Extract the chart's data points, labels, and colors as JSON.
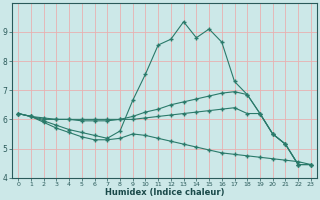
{
  "xlabel": "Humidex (Indice chaleur)",
  "background_color": "#cce8e8",
  "grid_color": "#dda0a0",
  "line_color": "#2a7a6a",
  "xlim": [
    -0.5,
    23.5
  ],
  "ylim": [
    4,
    10
  ],
  "yticks": [
    4,
    5,
    6,
    7,
    8,
    9
  ],
  "xticks": [
    0,
    1,
    2,
    3,
    4,
    5,
    6,
    7,
    8,
    9,
    10,
    11,
    12,
    13,
    14,
    15,
    16,
    17,
    18,
    19,
    20,
    21,
    22,
    23
  ],
  "line_peak_x": [
    0,
    1,
    2,
    3,
    4,
    5,
    6,
    7,
    8,
    9,
    10,
    11,
    12,
    13,
    14,
    15,
    16,
    17,
    18,
    19,
    20,
    21,
    22,
    23
  ],
  "line_peak_y": [
    6.2,
    6.1,
    5.95,
    5.8,
    5.65,
    5.55,
    5.45,
    5.35,
    5.6,
    6.65,
    7.55,
    8.55,
    8.75,
    9.35,
    8.8,
    9.1,
    8.65,
    7.3,
    6.85,
    6.2,
    5.5,
    5.15,
    4.45,
    4.45
  ],
  "line_upper_x": [
    0,
    1,
    2,
    3,
    4,
    5,
    6,
    7,
    8,
    9,
    10,
    11,
    12,
    13,
    14,
    15,
    16,
    17,
    18,
    19,
    20,
    21,
    22,
    23
  ],
  "line_upper_y": [
    6.2,
    6.1,
    6.0,
    6.0,
    6.0,
    5.95,
    5.95,
    5.95,
    6.0,
    6.1,
    6.25,
    6.35,
    6.5,
    6.6,
    6.7,
    6.8,
    6.9,
    6.95,
    6.85,
    6.2,
    5.5,
    5.15,
    4.45,
    4.45
  ],
  "line_flat_x": [
    0,
    1,
    2,
    3,
    4,
    5,
    6,
    7,
    8,
    9,
    10,
    11,
    12,
    13,
    14,
    15,
    16,
    17,
    18,
    19,
    20,
    21,
    22,
    23
  ],
  "line_flat_y": [
    6.2,
    6.1,
    6.05,
    6.0,
    6.0,
    6.0,
    6.0,
    6.0,
    6.0,
    6.0,
    6.05,
    6.1,
    6.15,
    6.2,
    6.25,
    6.3,
    6.35,
    6.4,
    6.2,
    6.2,
    5.5,
    5.15,
    4.45,
    4.45
  ],
  "line_lower_x": [
    0,
    1,
    2,
    3,
    4,
    5,
    6,
    7,
    8,
    9,
    10,
    11,
    12,
    13,
    14,
    15,
    16,
    17,
    18,
    19,
    20,
    21,
    22,
    23
  ],
  "line_lower_y": [
    6.2,
    6.1,
    5.9,
    5.7,
    5.55,
    5.4,
    5.3,
    5.3,
    5.35,
    5.5,
    5.45,
    5.35,
    5.25,
    5.15,
    5.05,
    4.95,
    4.85,
    4.8,
    4.75,
    4.7,
    4.65,
    4.6,
    4.55,
    4.45
  ]
}
